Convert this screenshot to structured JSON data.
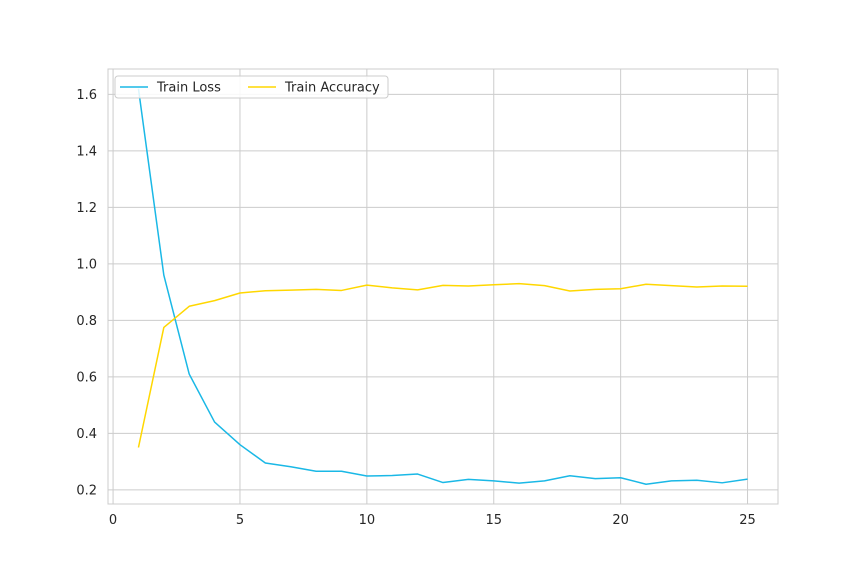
{
  "chart_data": {
    "type": "line",
    "title": "",
    "xlabel": "",
    "ylabel": "",
    "xlim": [
      -0.2,
      26.2
    ],
    "ylim": [
      0.15,
      1.69
    ],
    "grid": true,
    "legend_position": "top-left",
    "x_ticks": [
      0,
      5,
      10,
      15,
      20,
      25
    ],
    "y_ticks": [
      0.2,
      0.4,
      0.6,
      0.8,
      1.0,
      1.2,
      1.4,
      1.6
    ],
    "x_tick_labels": [
      "0",
      "5",
      "10",
      "15",
      "20",
      "25"
    ],
    "y_tick_labels": [
      "0.2",
      "0.4",
      "0.6",
      "0.8",
      "1.0",
      "1.2",
      "1.4",
      "1.6"
    ],
    "x": [
      1,
      2,
      3,
      4,
      5,
      6,
      7,
      8,
      9,
      10,
      11,
      12,
      13,
      14,
      15,
      16,
      17,
      18,
      19,
      20,
      21,
      22,
      23,
      24,
      25
    ],
    "series": [
      {
        "name": "Train Loss",
        "color": "#1ab8e6",
        "values": [
          1.62,
          0.96,
          0.61,
          0.44,
          0.36,
          0.295,
          0.282,
          0.266,
          0.266,
          0.249,
          0.251,
          0.256,
          0.226,
          0.237,
          0.232,
          0.224,
          0.232,
          0.25,
          0.24,
          0.243,
          0.22,
          0.232,
          0.234,
          0.225,
          0.238
        ]
      },
      {
        "name": "Train Accuracy",
        "color": "#ffd700",
        "values": [
          0.35,
          0.775,
          0.85,
          0.87,
          0.897,
          0.905,
          0.907,
          0.91,
          0.906,
          0.925,
          0.915,
          0.908,
          0.924,
          0.922,
          0.926,
          0.93,
          0.923,
          0.904,
          0.91,
          0.912,
          0.928,
          0.923,
          0.918,
          0.922,
          0.921
        ]
      }
    ]
  }
}
